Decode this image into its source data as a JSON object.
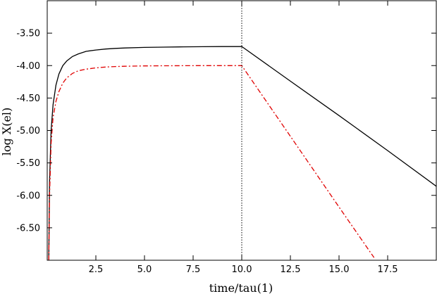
{
  "chart_data": {
    "type": "line",
    "xlabel": "time/tau(1)",
    "ylabel": "log X(el)",
    "xlim": [
      0,
      20
    ],
    "ylim": [
      -7.0,
      -3.0
    ],
    "grid": false,
    "legend": "none",
    "x_ticks": [
      2.5,
      5.0,
      7.5,
      10.0,
      12.5,
      15.0,
      17.5
    ],
    "x_tick_labels": [
      "2.5",
      "5.0",
      "7.5",
      "10.0",
      "12.5",
      "15.0",
      "17.5"
    ],
    "y_ticks": [
      -3.5,
      -4.0,
      -4.5,
      -5.0,
      -5.5,
      -6.0,
      -6.5
    ],
    "y_tick_labels": [
      "-3.50",
      "-4.00",
      "-4.50",
      "-5.00",
      "-5.50",
      "-6.00",
      "-6.50"
    ],
    "vline_x": 10.0,
    "colors": {
      "series1": "#000000",
      "series2": "#e00000",
      "vline": "#000000"
    },
    "series": [
      {
        "style": "solid",
        "x": [
          0.08,
          0.12,
          0.2,
          0.3,
          0.45,
          0.6,
          0.8,
          1.0,
          1.3,
          1.6,
          2.0,
          2.5,
          3.0,
          3.5,
          4.0,
          5.0,
          6.0,
          7.0,
          8.0,
          9.0,
          10.0,
          12.5,
          15.0,
          17.5,
          20.0
        ],
        "y": [
          -7.0,
          -5.8,
          -5.0,
          -4.6,
          -4.3,
          -4.13,
          -4.0,
          -3.93,
          -3.86,
          -3.82,
          -3.78,
          -3.76,
          -3.745,
          -3.735,
          -3.728,
          -3.72,
          -3.715,
          -3.711,
          -3.709,
          -3.707,
          -3.706,
          -4.24,
          -4.77,
          -5.31,
          -5.86
        ]
      },
      {
        "style": "dash-dot",
        "x": [
          0.08,
          0.12,
          0.2,
          0.3,
          0.45,
          0.6,
          0.8,
          1.0,
          1.3,
          1.6,
          2.0,
          2.5,
          3.0,
          3.5,
          4.0,
          5.0,
          6.0,
          7.0,
          8.0,
          9.0,
          10.0,
          12.5,
          15.0,
          16.8
        ],
        "y": [
          -7.0,
          -6.0,
          -5.2,
          -4.8,
          -4.55,
          -4.4,
          -4.27,
          -4.19,
          -4.12,
          -4.08,
          -4.055,
          -4.035,
          -4.022,
          -4.015,
          -4.01,
          -4.005,
          -4.003,
          -4.002,
          -4.001,
          -4.0,
          -4.0,
          -5.09,
          -6.18,
          -6.96
        ]
      }
    ]
  }
}
